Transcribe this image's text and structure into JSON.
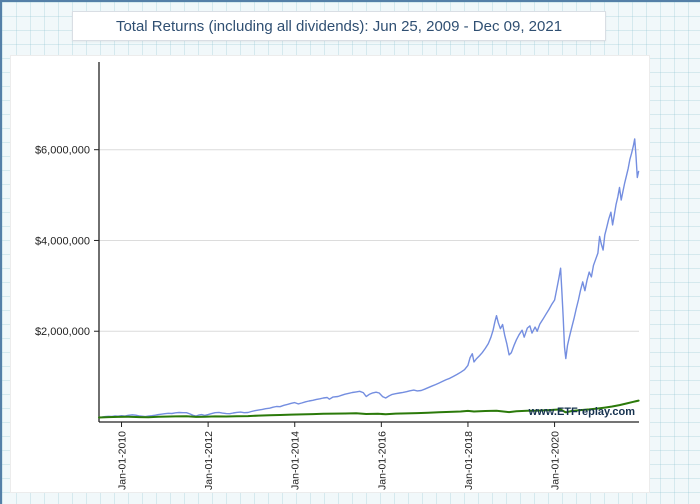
{
  "page": {
    "title": "Total Returns (including all dividends): Jun 25, 2009 - Dec 09, 2021",
    "watermark": "www.ETFreplay.com"
  },
  "colors": {
    "blue_line": "#748ee0",
    "green_line": "#2b7a0a",
    "axis": "#222222",
    "grid": "#dcdcdc",
    "tick_text": "#222222",
    "title_text": "#2f4f72",
    "watermark_text": "#16324f",
    "frame": "#5580a8"
  },
  "chart_data": {
    "type": "line",
    "title": "Total Returns (including all dividends): Jun 25, 2009 - Dec 09, 2021",
    "xlabel": "",
    "ylabel": "",
    "grid": true,
    "legend_position": "none",
    "x_axis": {
      "min": 2009.48,
      "max": 2021.95,
      "ticks": [
        {
          "x": 2010.0,
          "label": "Jan-01-2010"
        },
        {
          "x": 2012.0,
          "label": "Jan-01-2012"
        },
        {
          "x": 2014.0,
          "label": "Jan-01-2014"
        },
        {
          "x": 2016.0,
          "label": "Jan-01-2016"
        },
        {
          "x": 2018.0,
          "label": "Jan-01-2018"
        },
        {
          "x": 2020.0,
          "label": "Jan-01-2020"
        }
      ]
    },
    "y_axis": {
      "min": 0,
      "max": 7800000,
      "ticks": [
        {
          "value": 2000000,
          "label": "$2,000,000"
        },
        {
          "value": 4000000,
          "label": "$4,000,000"
        },
        {
          "value": 6000000,
          "label": "$6,000,000"
        }
      ]
    },
    "series": [
      {
        "name": "blue-line",
        "color_key": "blue_line",
        "stroke_width": 1.4,
        "points": [
          [
            2009.48,
            100000
          ],
          [
            2009.55,
            108000
          ],
          [
            2009.62,
            118000
          ],
          [
            2009.7,
            126000
          ],
          [
            2009.78,
            122000
          ],
          [
            2009.85,
            132000
          ],
          [
            2009.92,
            128000
          ],
          [
            2010.0,
            138000
          ],
          [
            2010.08,
            130000
          ],
          [
            2010.16,
            148000
          ],
          [
            2010.25,
            158000
          ],
          [
            2010.33,
            150000
          ],
          [
            2010.42,
            132000
          ],
          [
            2010.5,
            126000
          ],
          [
            2010.55,
            118000
          ],
          [
            2010.62,
            130000
          ],
          [
            2010.7,
            138000
          ],
          [
            2010.78,
            150000
          ],
          [
            2010.85,
            162000
          ],
          [
            2010.92,
            172000
          ],
          [
            2011.0,
            182000
          ],
          [
            2011.08,
            192000
          ],
          [
            2011.16,
            188000
          ],
          [
            2011.25,
            202000
          ],
          [
            2011.33,
            210000
          ],
          [
            2011.42,
            204000
          ],
          [
            2011.5,
            206000
          ],
          [
            2011.58,
            178000
          ],
          [
            2011.65,
            148000
          ],
          [
            2011.72,
            132000
          ],
          [
            2011.78,
            152000
          ],
          [
            2011.85,
            164000
          ],
          [
            2011.92,
            146000
          ],
          [
            2012.0,
            162000
          ],
          [
            2012.08,
            184000
          ],
          [
            2012.16,
            204000
          ],
          [
            2012.25,
            212000
          ],
          [
            2012.33,
            196000
          ],
          [
            2012.42,
            186000
          ],
          [
            2012.5,
            182000
          ],
          [
            2012.58,
            198000
          ],
          [
            2012.66,
            212000
          ],
          [
            2012.75,
            218000
          ],
          [
            2012.83,
            204000
          ],
          [
            2012.92,
            210000
          ],
          [
            2013.0,
            232000
          ],
          [
            2013.08,
            248000
          ],
          [
            2013.16,
            262000
          ],
          [
            2013.25,
            278000
          ],
          [
            2013.33,
            292000
          ],
          [
            2013.42,
            304000
          ],
          [
            2013.5,
            326000
          ],
          [
            2013.58,
            342000
          ],
          [
            2013.66,
            338000
          ],
          [
            2013.75,
            368000
          ],
          [
            2013.83,
            388000
          ],
          [
            2013.92,
            412000
          ],
          [
            2014.0,
            428000
          ],
          [
            2014.08,
            398000
          ],
          [
            2014.16,
            418000
          ],
          [
            2014.25,
            444000
          ],
          [
            2014.33,
            462000
          ],
          [
            2014.42,
            478000
          ],
          [
            2014.5,
            498000
          ],
          [
            2014.58,
            512000
          ],
          [
            2014.66,
            528000
          ],
          [
            2014.75,
            540000
          ],
          [
            2014.8,
            502000
          ],
          [
            2014.88,
            548000
          ],
          [
            2015.0,
            562000
          ],
          [
            2015.08,
            588000
          ],
          [
            2015.16,
            612000
          ],
          [
            2015.25,
            632000
          ],
          [
            2015.33,
            650000
          ],
          [
            2015.42,
            664000
          ],
          [
            2015.5,
            676000
          ],
          [
            2015.58,
            648000
          ],
          [
            2015.65,
            562000
          ],
          [
            2015.72,
            608000
          ],
          [
            2015.8,
            642000
          ],
          [
            2015.88,
            656000
          ],
          [
            2015.95,
            640000
          ],
          [
            2016.03,
            560000
          ],
          [
            2016.1,
            528000
          ],
          [
            2016.18,
            576000
          ],
          [
            2016.25,
            608000
          ],
          [
            2016.33,
            624000
          ],
          [
            2016.42,
            638000
          ],
          [
            2016.5,
            652000
          ],
          [
            2016.58,
            668000
          ],
          [
            2016.66,
            688000
          ],
          [
            2016.75,
            702000
          ],
          [
            2016.83,
            686000
          ],
          [
            2016.92,
            694000
          ],
          [
            2017.0,
            722000
          ],
          [
            2017.08,
            756000
          ],
          [
            2017.16,
            788000
          ],
          [
            2017.25,
            824000
          ],
          [
            2017.33,
            858000
          ],
          [
            2017.42,
            896000
          ],
          [
            2017.5,
            934000
          ],
          [
            2017.58,
            962000
          ],
          [
            2017.66,
            1002000
          ],
          [
            2017.75,
            1048000
          ],
          [
            2017.83,
            1096000
          ],
          [
            2017.92,
            1152000
          ],
          [
            2018.0,
            1248000
          ],
          [
            2018.05,
            1420000
          ],
          [
            2018.1,
            1506000
          ],
          [
            2018.14,
            1322000
          ],
          [
            2018.2,
            1398000
          ],
          [
            2018.27,
            1462000
          ],
          [
            2018.33,
            1528000
          ],
          [
            2018.4,
            1622000
          ],
          [
            2018.47,
            1728000
          ],
          [
            2018.53,
            1866000
          ],
          [
            2018.58,
            2022000
          ],
          [
            2018.62,
            2198000
          ],
          [
            2018.66,
            2342000
          ],
          [
            2018.7,
            2186000
          ],
          [
            2018.75,
            2056000
          ],
          [
            2018.8,
            2148000
          ],
          [
            2018.85,
            1902000
          ],
          [
            2018.9,
            1716000
          ],
          [
            2018.95,
            1478000
          ],
          [
            2019.0,
            1528000
          ],
          [
            2019.06,
            1682000
          ],
          [
            2019.12,
            1812000
          ],
          [
            2019.18,
            1922000
          ],
          [
            2019.25,
            2022000
          ],
          [
            2019.3,
            1868000
          ],
          [
            2019.37,
            2068000
          ],
          [
            2019.43,
            2118000
          ],
          [
            2019.48,
            1958000
          ],
          [
            2019.55,
            2092000
          ],
          [
            2019.6,
            1998000
          ],
          [
            2019.66,
            2158000
          ],
          [
            2019.73,
            2262000
          ],
          [
            2019.8,
            2372000
          ],
          [
            2019.87,
            2478000
          ],
          [
            2019.93,
            2582000
          ],
          [
            2020.0,
            2688000
          ],
          [
            2020.05,
            2922000
          ],
          [
            2020.1,
            3172000
          ],
          [
            2020.14,
            3388000
          ],
          [
            2020.17,
            2862000
          ],
          [
            2020.2,
            2302000
          ],
          [
            2020.23,
            1652000
          ],
          [
            2020.26,
            1398000
          ],
          [
            2020.3,
            1688000
          ],
          [
            2020.35,
            1902000
          ],
          [
            2020.4,
            2098000
          ],
          [
            2020.45,
            2278000
          ],
          [
            2020.5,
            2492000
          ],
          [
            2020.55,
            2688000
          ],
          [
            2020.6,
            2902000
          ],
          [
            2020.65,
            3088000
          ],
          [
            2020.7,
            2892000
          ],
          [
            2020.75,
            3122000
          ],
          [
            2020.8,
            3302000
          ],
          [
            2020.85,
            3198000
          ],
          [
            2020.9,
            3452000
          ],
          [
            2020.95,
            3588000
          ],
          [
            2021.0,
            3722000
          ],
          [
            2021.04,
            4088000
          ],
          [
            2021.08,
            3922000
          ],
          [
            2021.12,
            3788000
          ],
          [
            2021.16,
            4122000
          ],
          [
            2021.2,
            4268000
          ],
          [
            2021.25,
            4468000
          ],
          [
            2021.3,
            4622000
          ],
          [
            2021.34,
            4342000
          ],
          [
            2021.38,
            4562000
          ],
          [
            2021.42,
            4788000
          ],
          [
            2021.46,
            4958000
          ],
          [
            2021.5,
            5168000
          ],
          [
            2021.54,
            4892000
          ],
          [
            2021.58,
            5088000
          ],
          [
            2021.62,
            5268000
          ],
          [
            2021.66,
            5422000
          ],
          [
            2021.7,
            5588000
          ],
          [
            2021.74,
            5788000
          ],
          [
            2021.78,
            5922000
          ],
          [
            2021.82,
            6088000
          ],
          [
            2021.85,
            6238000
          ],
          [
            2021.88,
            5862000
          ],
          [
            2021.91,
            5388000
          ],
          [
            2021.94,
            5522000
          ]
        ]
      },
      {
        "name": "green-line",
        "color_key": "green_line",
        "stroke_width": 2,
        "points": [
          [
            2009.48,
            100000
          ],
          [
            2009.7,
            108000
          ],
          [
            2009.92,
            112000
          ],
          [
            2010.16,
            116000
          ],
          [
            2010.42,
            108000
          ],
          [
            2010.62,
            104000
          ],
          [
            2010.85,
            114000
          ],
          [
            2011.0,
            120000
          ],
          [
            2011.25,
            124000
          ],
          [
            2011.5,
            126000
          ],
          [
            2011.72,
            112000
          ],
          [
            2011.92,
            116000
          ],
          [
            2012.16,
            124000
          ],
          [
            2012.42,
            122000
          ],
          [
            2012.66,
            128000
          ],
          [
            2012.92,
            130000
          ],
          [
            2013.16,
            140000
          ],
          [
            2013.42,
            148000
          ],
          [
            2013.66,
            154000
          ],
          [
            2013.92,
            164000
          ],
          [
            2014.16,
            168000
          ],
          [
            2014.42,
            174000
          ],
          [
            2014.66,
            180000
          ],
          [
            2014.92,
            184000
          ],
          [
            2015.16,
            188000
          ],
          [
            2015.42,
            192000
          ],
          [
            2015.65,
            176000
          ],
          [
            2015.92,
            182000
          ],
          [
            2016.1,
            170000
          ],
          [
            2016.33,
            184000
          ],
          [
            2016.58,
            190000
          ],
          [
            2016.83,
            196000
          ],
          [
            2017.08,
            206000
          ],
          [
            2017.33,
            214000
          ],
          [
            2017.58,
            222000
          ],
          [
            2017.83,
            232000
          ],
          [
            2018.0,
            244000
          ],
          [
            2018.14,
            232000
          ],
          [
            2018.4,
            242000
          ],
          [
            2018.66,
            250000
          ],
          [
            2018.95,
            218000
          ],
          [
            2019.12,
            236000
          ],
          [
            2019.37,
            246000
          ],
          [
            2019.62,
            252000
          ],
          [
            2019.87,
            262000
          ],
          [
            2020.0,
            268000
          ],
          [
            2020.14,
            278000
          ],
          [
            2020.23,
            226000
          ],
          [
            2020.26,
            214000
          ],
          [
            2020.4,
            242000
          ],
          [
            2020.6,
            262000
          ],
          [
            2020.8,
            278000
          ],
          [
            2021.0,
            298000
          ],
          [
            2021.16,
            318000
          ],
          [
            2021.33,
            342000
          ],
          [
            2021.5,
            372000
          ],
          [
            2021.66,
            408000
          ],
          [
            2021.82,
            444000
          ],
          [
            2021.94,
            472000
          ]
        ]
      }
    ],
    "annotations": [
      {
        "text": "www.ETFreplay.com",
        "position": "bottom-right"
      }
    ]
  }
}
